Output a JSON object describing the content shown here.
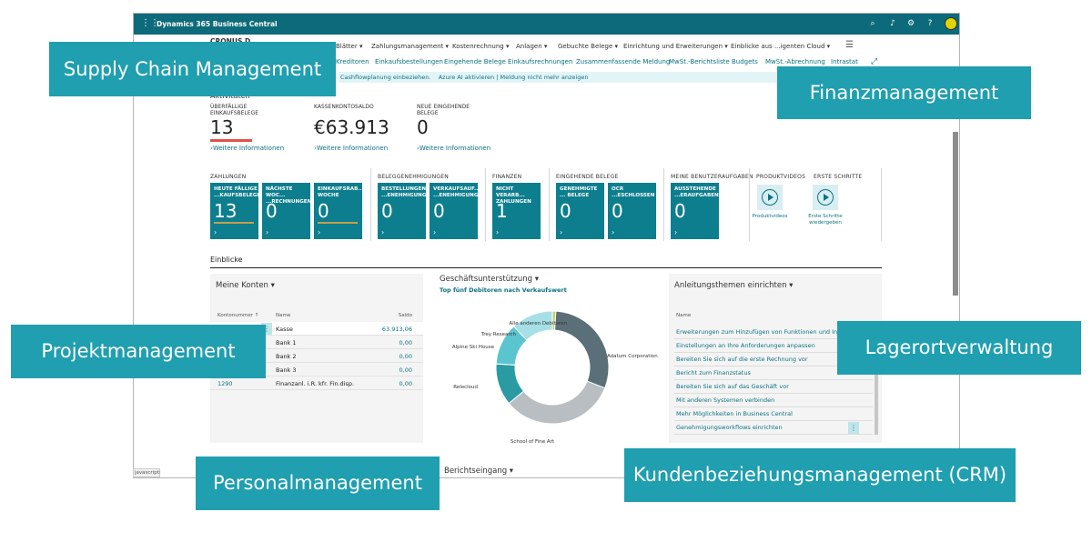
{
  "app": {
    "title": "Dynamics 365 Business Central",
    "topbar_icons": [
      "search-icon",
      "bell-icon",
      "gear-icon",
      "help-icon"
    ],
    "company_partial": "CRONUS D"
  },
  "menu": {
    "items": [
      "Blätter",
      "Zahlungsmanagement",
      "Kostenrechnung",
      "Anlagen",
      "Gebuchte Belege",
      "Einrichtung und Erweiterungen",
      "Einblicke aus ...igenten Cloud"
    ]
  },
  "actions": {
    "items": [
      "Kreditoren",
      "Einkaufsbestellungen",
      "Eingehende Belege",
      "Einkaufsrechnungen",
      "Zusammenfassende Meldung",
      "MwSt.-Berichtsliste",
      "Budgets",
      "MwSt.-Abrechnung",
      "Intrastat"
    ]
  },
  "notification": {
    "text": "Cashflowplanung einbeziehen.",
    "link1": "Azure AI aktivieren",
    "sep": "|",
    "link2": "Meldung nicht mehr anzeigen"
  },
  "activities": {
    "title": "Aktivitäten",
    "cues": [
      {
        "label": "ÜBERFÄLLIGE EINKAUFSBELEGE",
        "value": "13",
        "link": "Weitere Informationen"
      },
      {
        "label": "KASSENKONTOSALDO",
        "value": "€63.913",
        "link": "Weitere Informationen"
      },
      {
        "label": "NEUE EINGEHENDE BELEGE",
        "value": "0",
        "link": "Weitere Informationen"
      }
    ]
  },
  "tile_groups": [
    {
      "label": "ZAHLUNGEN"
    },
    {
      "label": "BELEGGENEHMIGUNGEN"
    },
    {
      "label": "FINANZEN"
    },
    {
      "label": "EINGEHENDE BELEGE"
    },
    {
      "label": "MEINE BENUTZERAUFGABEN"
    },
    {
      "label": "PRODUKTVIDEOS"
    },
    {
      "label": "ERSTE SCHRITTE"
    }
  ],
  "tiles": [
    {
      "label": "HEUTE FÄLLIGE ...KAUFSBELEGE",
      "value": "13",
      "arrow": "›"
    },
    {
      "label": "NÄCHSTE WOC... ...RECHNUNGEN",
      "value": "0",
      "arrow": "›"
    },
    {
      "label": "EINKAUFSRAB... WOCHE",
      "value": "0",
      "arrow": "›"
    },
    {
      "label": "BESTELLUNGEN ...ENEHMIGUNG",
      "value": "0",
      "arrow": "›"
    },
    {
      "label": "VERKAUFSAUF... ...ENEHMIGUNG",
      "value": "0",
      "arrow": "›"
    },
    {
      "label": "NICHT VERARB... ZAHLUNGEN",
      "value": "1",
      "arrow": "›"
    },
    {
      "label": "GENEHMIGTE ... BELEGE",
      "value": "0",
      "arrow": "›"
    },
    {
      "label": "OCR ...ESCHLOSSEN",
      "value": "0",
      "arrow": "›"
    },
    {
      "label": "AUSSTEHENDE ...ERAUFGABEN",
      "value": "0",
      "arrow": "›"
    }
  ],
  "videos": [
    {
      "label": "Produktvideos"
    },
    {
      "label": "Erste Schritte wiedergeben"
    }
  ],
  "insights": {
    "title": "Einblicke"
  },
  "accounts": {
    "title": "Meine Konten",
    "col_num": "Kontonummer ↑",
    "col_name": "Name",
    "col_balance": "Saldo",
    "rows": [
      {
        "num": "",
        "name": "Kasse",
        "balance": "63.913,06"
      },
      {
        "num": "",
        "name": "Bank 1",
        "balance": "0,00"
      },
      {
        "num": "",
        "name": "Bank 2",
        "balance": "0,00"
      },
      {
        "num": "",
        "name": "Bank 3",
        "balance": "0,00"
      },
      {
        "num": "1290",
        "name": "Finanzanl. i.R. kfr. Fin.disp.",
        "balance": "0,00"
      }
    ]
  },
  "business": {
    "title": "Geschäftsunterstützung",
    "subtitle": "Top fünf Debitoren nach Verkaufswert"
  },
  "chart_data": {
    "type": "pie",
    "title": "Top fünf Debitoren nach Verkaufswert",
    "categories": [
      "Alle anderen Debitoren",
      "Adatum Corporation",
      "School of Fine Art",
      "Relecloud",
      "Alpine Ski House",
      "Trey Research"
    ],
    "values": [
      1,
      30,
      33,
      12,
      12,
      12
    ],
    "colors": [
      "#c8cf6e",
      "#5b6f78",
      "#b8bec2",
      "#2a9aa3",
      "#5bc5cf",
      "#a6e0e6"
    ]
  },
  "setup": {
    "title": "Anleitungsthemen einrichten",
    "col_name": "Name",
    "rows": [
      "Erweiterungen zum Hinzufügen von Funktionen und Integrationen",
      "Einstellungen an Ihre Anforderungen anpassen",
      "Bereiten Sie sich auf die erste Rechnung vor",
      "Bericht zum Finanzstatus",
      "Bereiten Sie sich auf das Geschäft vor",
      "Mit anderen Systemen verbinden",
      "Mehr Möglichkeiten in Business Central",
      "Genehmigungsworkflows einrichten"
    ]
  },
  "report_inbox": {
    "title": "Berichtseingang"
  },
  "status": {
    "text": "javascript:"
  },
  "banners": {
    "scm": "Supply Chain Management",
    "fin": "Finanzmanagement",
    "proj": "Projektmanagement",
    "lager": "Lagerortverwaltung",
    "personal": "Personalmanagement",
    "crm": "Kundenbeziehungsmanagement (CRM)"
  }
}
